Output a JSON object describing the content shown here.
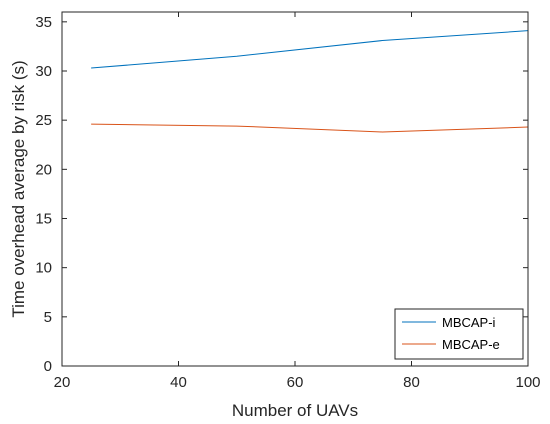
{
  "chart_data": {
    "type": "line",
    "xlabel": "Number of UAVs",
    "ylabel": "Time overhead average by risk (s)",
    "xlim": [
      20,
      100
    ],
    "ylim": [
      0,
      36
    ],
    "xticks": [
      20,
      40,
      60,
      80,
      100
    ],
    "yticks": [
      0,
      5,
      10,
      15,
      20,
      25,
      30,
      35
    ],
    "grid": false,
    "legend_position": "bottom-right",
    "series": [
      {
        "name": "MBCAP-i",
        "color": "#0072BD",
        "x": [
          25,
          50,
          75,
          100
        ],
        "y": [
          30.3,
          31.5,
          33.1,
          34.1
        ]
      },
      {
        "name": "MBCAP-e",
        "color": "#D95319",
        "x": [
          25,
          50,
          75,
          100
        ],
        "y": [
          24.6,
          24.4,
          23.8,
          24.3
        ]
      }
    ]
  }
}
